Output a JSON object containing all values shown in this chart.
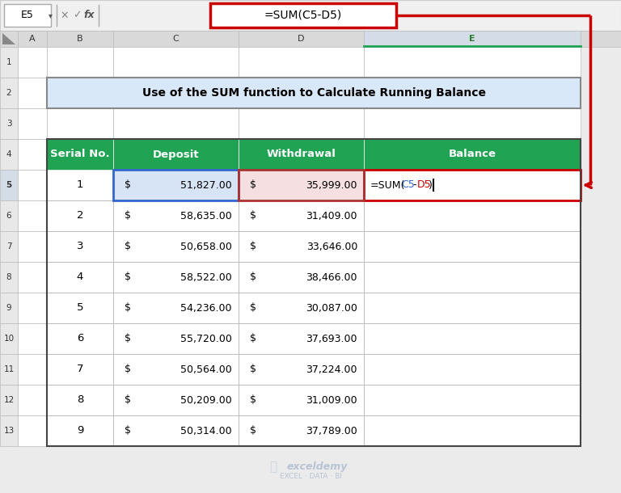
{
  "title": "Use of the SUM function to Calculate Running Balance",
  "formula_bar_cell": "E5",
  "formula_bar_formula": "=SUM(C5-D5)",
  "col_headers": [
    "A",
    "B",
    "C",
    "D",
    "E"
  ],
  "table_headers": [
    "Serial No.",
    "Deposit",
    "Withdrawal",
    "Balance"
  ],
  "header_bg": "#21A354",
  "header_text": "#FFFFFF",
  "serial_nos": [
    1,
    2,
    3,
    4,
    5,
    6,
    7,
    8,
    9
  ],
  "deposits": [
    "51,827.00",
    "58,635.00",
    "50,658.00",
    "58,522.00",
    "54,236.00",
    "55,720.00",
    "50,564.00",
    "50,209.00",
    "50,314.00"
  ],
  "withdrawals": [
    "35,999.00",
    "31,409.00",
    "33,646.00",
    "38,466.00",
    "30,087.00",
    "37,693.00",
    "37,224.00",
    "31,009.00",
    "37,789.00"
  ],
  "bg_color": "#EBEBEB",
  "cell_bg": "#FFFFFF",
  "grid_color": "#B0B0B0",
  "title_border_color": "#888888",
  "title_bg": "#D9E8F8",
  "col_header_bg": "#D9D9D9",
  "row_header_bg": "#E8E8E8",
  "selected_col_bg": "#D4DCE8",
  "deposit_highlight_bg": "#D6E4F5",
  "withdrawal_highlight_bg": "#F5DFE0",
  "arrow_color": "#CC0000",
  "formula_box_color": "#CC0000",
  "c5_border_color": "#3366CC",
  "d5_border_color": "#AA3333",
  "e5_border_color": "#CC0000",
  "formula_text_color": "#000000",
  "c5_text_color": "#3366CC",
  "d5_text_color": "#CC0000",
  "watermark_color": "#B8C4D4",
  "e_col_header_green_line": "#21A354"
}
